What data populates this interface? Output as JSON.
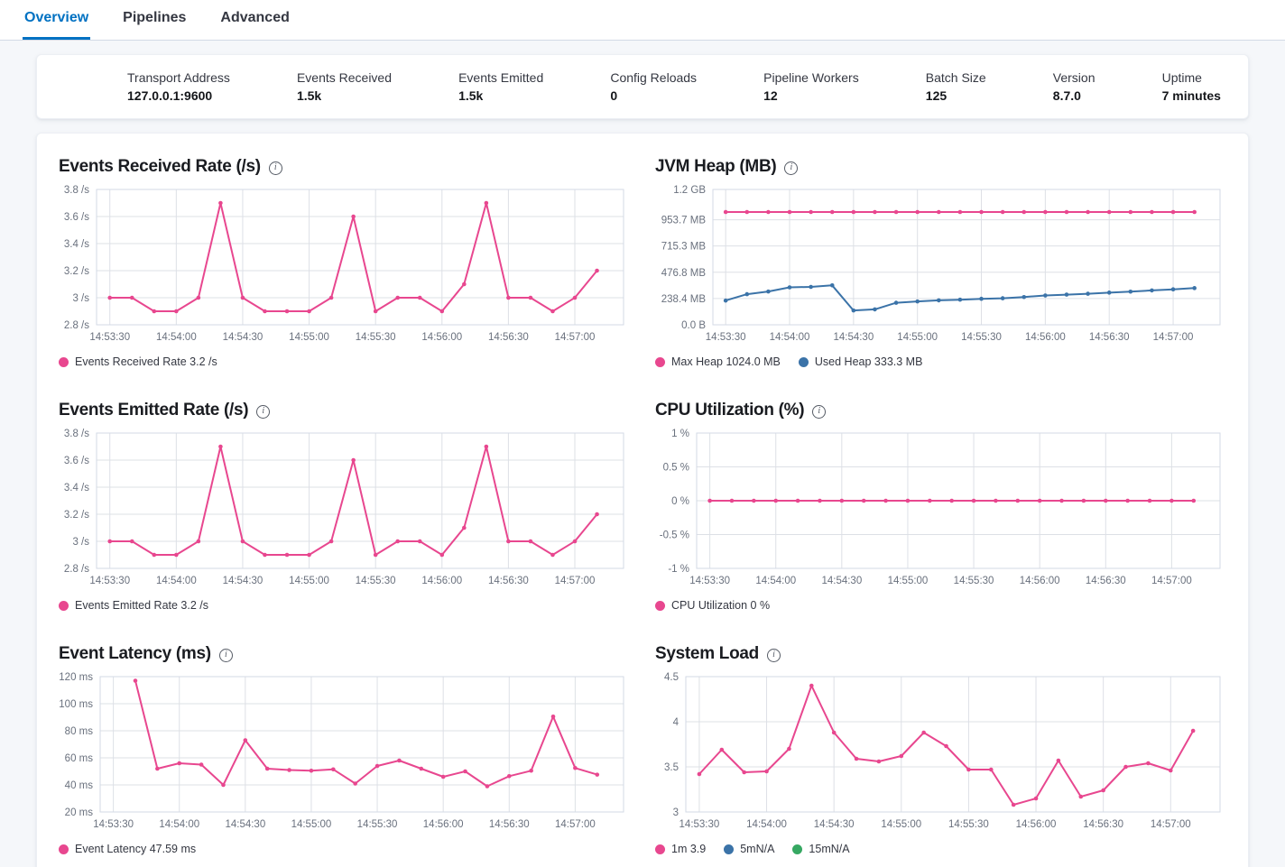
{
  "tabs": [
    {
      "label": "Overview",
      "active": true
    },
    {
      "label": "Pipelines",
      "active": false
    },
    {
      "label": "Advanced",
      "active": false
    }
  ],
  "summary": [
    {
      "label": "Transport Address",
      "value": "127.0.0.1:9600"
    },
    {
      "label": "Events Received",
      "value": "1.5k"
    },
    {
      "label": "Events Emitted",
      "value": "1.5k"
    },
    {
      "label": "Config Reloads",
      "value": "0"
    },
    {
      "label": "Pipeline Workers",
      "value": "12"
    },
    {
      "label": "Batch Size",
      "value": "125"
    },
    {
      "label": "Version",
      "value": "8.7.0"
    },
    {
      "label": "Uptime",
      "value": "7 minutes"
    }
  ],
  "colors": {
    "pink": "#e8478f",
    "blue": "#3b73a8",
    "green": "#36a862",
    "accent": "#0071c2",
    "grid": "#dde0e6",
    "border": "#d3dae6",
    "tick_text": "#69707d"
  },
  "chart_data": [
    {
      "type": "line",
      "title": "Events Received Rate (/s)",
      "ylim": [
        2.8,
        3.8
      ],
      "x_domain": [
        -6,
        232
      ],
      "x_start": 0,
      "x_step": 10,
      "x_ticks": [
        {
          "t": 0,
          "label": "14:53:30"
        },
        {
          "t": 30,
          "label": "14:54:00"
        },
        {
          "t": 60,
          "label": "14:54:30"
        },
        {
          "t": 90,
          "label": "14:55:00"
        },
        {
          "t": 120,
          "label": "14:55:30"
        },
        {
          "t": 150,
          "label": "14:56:00"
        },
        {
          "t": 180,
          "label": "14:56:30"
        },
        {
          "t": 210,
          "label": "14:57:00"
        }
      ],
      "y_ticks": [
        {
          "value": 2.8,
          "label": "2.8 /s"
        },
        {
          "value": 3,
          "label": "3 /s"
        },
        {
          "value": 3.2,
          "label": "3.2 /s"
        },
        {
          "value": 3.4,
          "label": "3.4 /s"
        },
        {
          "value": 3.6,
          "label": "3.6 /s"
        },
        {
          "value": 3.8,
          "label": "3.8 /s"
        }
      ],
      "series": [
        {
          "name": "Events Received Rate",
          "color": "pink",
          "values": [
            3,
            3,
            2.9,
            2.9,
            3,
            3.7,
            3,
            2.9,
            2.9,
            2.9,
            3,
            3.6,
            2.9,
            3,
            3,
            2.9,
            3.1,
            3.7,
            3,
            3,
            2.9,
            3,
            3.2
          ]
        }
      ],
      "legend": [
        {
          "color": "pink",
          "label": "Events Received Rate 3.2 /s"
        }
      ]
    },
    {
      "type": "line",
      "title": "JVM Heap (MB)",
      "ylim": [
        0,
        1228.8
      ],
      "x_domain": [
        -6,
        232
      ],
      "x_start": 0,
      "x_step": 10,
      "x_ticks": [
        {
          "t": 0,
          "label": "14:53:30"
        },
        {
          "t": 30,
          "label": "14:54:00"
        },
        {
          "t": 60,
          "label": "14:54:30"
        },
        {
          "t": 90,
          "label": "14:55:00"
        },
        {
          "t": 120,
          "label": "14:55:30"
        },
        {
          "t": 150,
          "label": "14:56:00"
        },
        {
          "t": 180,
          "label": "14:56:30"
        },
        {
          "t": 210,
          "label": "14:57:00"
        }
      ],
      "y_ticks": [
        {
          "value": 0,
          "label": "0.0 B"
        },
        {
          "value": 238.4,
          "label": "238.4 MB"
        },
        {
          "value": 476.8,
          "label": "476.8 MB"
        },
        {
          "value": 715.3,
          "label": "715.3 MB"
        },
        {
          "value": 953.7,
          "label": "953.7 MB"
        },
        {
          "value": 1228.8,
          "label": "1.2 GB"
        }
      ],
      "series": [
        {
          "name": "Max Heap",
          "color": "pink",
          "values": [
            1024,
            1024,
            1024,
            1024,
            1024,
            1024,
            1024,
            1024,
            1024,
            1024,
            1024,
            1024,
            1024,
            1024,
            1024,
            1024,
            1024,
            1024,
            1024,
            1024,
            1024,
            1024,
            1024
          ]
        },
        {
          "name": "Used Heap",
          "color": "blue",
          "values": [
            220,
            278,
            302,
            340,
            344,
            358,
            130,
            140,
            200,
            212,
            222,
            228,
            236,
            241,
            252,
            266,
            274,
            282,
            292,
            301,
            312,
            322,
            333.3
          ]
        }
      ],
      "legend": [
        {
          "color": "pink",
          "label": "Max Heap 1024.0 MB"
        },
        {
          "color": "blue",
          "label": "Used Heap 333.3 MB"
        }
      ]
    },
    {
      "type": "line",
      "title": "Events Emitted Rate (/s)",
      "ylim": [
        2.8,
        3.8
      ],
      "x_domain": [
        -6,
        232
      ],
      "x_start": 0,
      "x_step": 10,
      "x_ticks": [
        {
          "t": 0,
          "label": "14:53:30"
        },
        {
          "t": 30,
          "label": "14:54:00"
        },
        {
          "t": 60,
          "label": "14:54:30"
        },
        {
          "t": 90,
          "label": "14:55:00"
        },
        {
          "t": 120,
          "label": "14:55:30"
        },
        {
          "t": 150,
          "label": "14:56:00"
        },
        {
          "t": 180,
          "label": "14:56:30"
        },
        {
          "t": 210,
          "label": "14:57:00"
        }
      ],
      "y_ticks": [
        {
          "value": 2.8,
          "label": "2.8 /s"
        },
        {
          "value": 3,
          "label": "3 /s"
        },
        {
          "value": 3.2,
          "label": "3.2 /s"
        },
        {
          "value": 3.4,
          "label": "3.4 /s"
        },
        {
          "value": 3.6,
          "label": "3.6 /s"
        },
        {
          "value": 3.8,
          "label": "3.8 /s"
        }
      ],
      "series": [
        {
          "name": "Events Emitted Rate",
          "color": "pink",
          "values": [
            3,
            3,
            2.9,
            2.9,
            3,
            3.7,
            3,
            2.9,
            2.9,
            2.9,
            3,
            3.6,
            2.9,
            3,
            3,
            2.9,
            3.1,
            3.7,
            3,
            3,
            2.9,
            3,
            3.2
          ]
        }
      ],
      "legend": [
        {
          "color": "pink",
          "label": "Events Emitted Rate 3.2 /s"
        }
      ]
    },
    {
      "type": "line",
      "title": "CPU Utilization (%)",
      "ylim": [
        -1,
        1
      ],
      "x_domain": [
        -6,
        232
      ],
      "x_start": 0,
      "x_step": 10,
      "x_ticks": [
        {
          "t": 0,
          "label": "14:53:30"
        },
        {
          "t": 30,
          "label": "14:54:00"
        },
        {
          "t": 60,
          "label": "14:54:30"
        },
        {
          "t": 90,
          "label": "14:55:00"
        },
        {
          "t": 120,
          "label": "14:55:30"
        },
        {
          "t": 150,
          "label": "14:56:00"
        },
        {
          "t": 180,
          "label": "14:56:30"
        },
        {
          "t": 210,
          "label": "14:57:00"
        }
      ],
      "y_ticks": [
        {
          "value": -1,
          "label": "-1 %"
        },
        {
          "value": -0.5,
          "label": "-0.5 %"
        },
        {
          "value": 0,
          "label": "0 %"
        },
        {
          "value": 0.5,
          "label": "0.5 %"
        },
        {
          "value": 1,
          "label": "1 %"
        }
      ],
      "series": [
        {
          "name": "CPU Utilization",
          "color": "pink",
          "values": [
            0,
            0,
            0,
            0,
            0,
            0,
            0,
            0,
            0,
            0,
            0,
            0,
            0,
            0,
            0,
            0,
            0,
            0,
            0,
            0,
            0,
            0,
            0
          ]
        }
      ],
      "legend": [
        {
          "color": "pink",
          "label": "CPU Utilization 0 %"
        }
      ]
    },
    {
      "type": "line",
      "title": "Event Latency (ms)",
      "ylim": [
        20,
        120
      ],
      "x_domain": [
        -6,
        232
      ],
      "x_start": 10,
      "x_step": 10,
      "x_ticks": [
        {
          "t": 0,
          "label": "14:53:30"
        },
        {
          "t": 30,
          "label": "14:54:00"
        },
        {
          "t": 60,
          "label": "14:54:30"
        },
        {
          "t": 90,
          "label": "14:55:00"
        },
        {
          "t": 120,
          "label": "14:55:30"
        },
        {
          "t": 150,
          "label": "14:56:00"
        },
        {
          "t": 180,
          "label": "14:56:30"
        },
        {
          "t": 210,
          "label": "14:57:00"
        }
      ],
      "y_ticks": [
        {
          "value": 20,
          "label": "20 ms"
        },
        {
          "value": 40,
          "label": "40 ms"
        },
        {
          "value": 60,
          "label": "60 ms"
        },
        {
          "value": 80,
          "label": "80 ms"
        },
        {
          "value": 100,
          "label": "100 ms"
        },
        {
          "value": 120,
          "label": "120 ms"
        }
      ],
      "series": [
        {
          "name": "Event Latency",
          "color": "pink",
          "values": [
            117,
            52,
            56,
            55,
            40,
            73,
            52,
            51,
            50.5,
            51.5,
            41,
            54,
            58,
            52,
            46,
            50,
            39,
            46.5,
            50.5,
            90.5,
            52.5,
            47.59
          ]
        }
      ],
      "legend": [
        {
          "color": "pink",
          "label": "Event Latency 47.59 ms"
        }
      ]
    },
    {
      "type": "line",
      "title": "System Load",
      "ylim": [
        3,
        4.5
      ],
      "x_domain": [
        -6,
        232
      ],
      "x_start": 0,
      "x_step": 10,
      "x_ticks": [
        {
          "t": 0,
          "label": "14:53:30"
        },
        {
          "t": 30,
          "label": "14:54:00"
        },
        {
          "t": 60,
          "label": "14:54:30"
        },
        {
          "t": 90,
          "label": "14:55:00"
        },
        {
          "t": 120,
          "label": "14:55:30"
        },
        {
          "t": 150,
          "label": "14:56:00"
        },
        {
          "t": 180,
          "label": "14:56:30"
        },
        {
          "t": 210,
          "label": "14:57:00"
        }
      ],
      "y_ticks": [
        {
          "value": 3,
          "label": "3"
        },
        {
          "value": 3.5,
          "label": "3.5"
        },
        {
          "value": 4,
          "label": "4"
        },
        {
          "value": 4.5,
          "label": "4.5"
        }
      ],
      "series": [
        {
          "name": "1m",
          "color": "pink",
          "values": [
            3.42,
            3.69,
            3.44,
            3.45,
            3.7,
            4.4,
            3.88,
            3.59,
            3.56,
            3.62,
            3.88,
            3.73,
            3.47,
            3.47,
            3.08,
            3.15,
            3.57,
            3.17,
            3.24,
            3.5,
            3.54,
            3.46,
            3.9
          ]
        }
      ],
      "legend": [
        {
          "color": "pink",
          "label": "1m 3.9"
        },
        {
          "color": "blue",
          "label": "5mN/A"
        },
        {
          "color": "green",
          "label": "15mN/A"
        }
      ]
    }
  ]
}
